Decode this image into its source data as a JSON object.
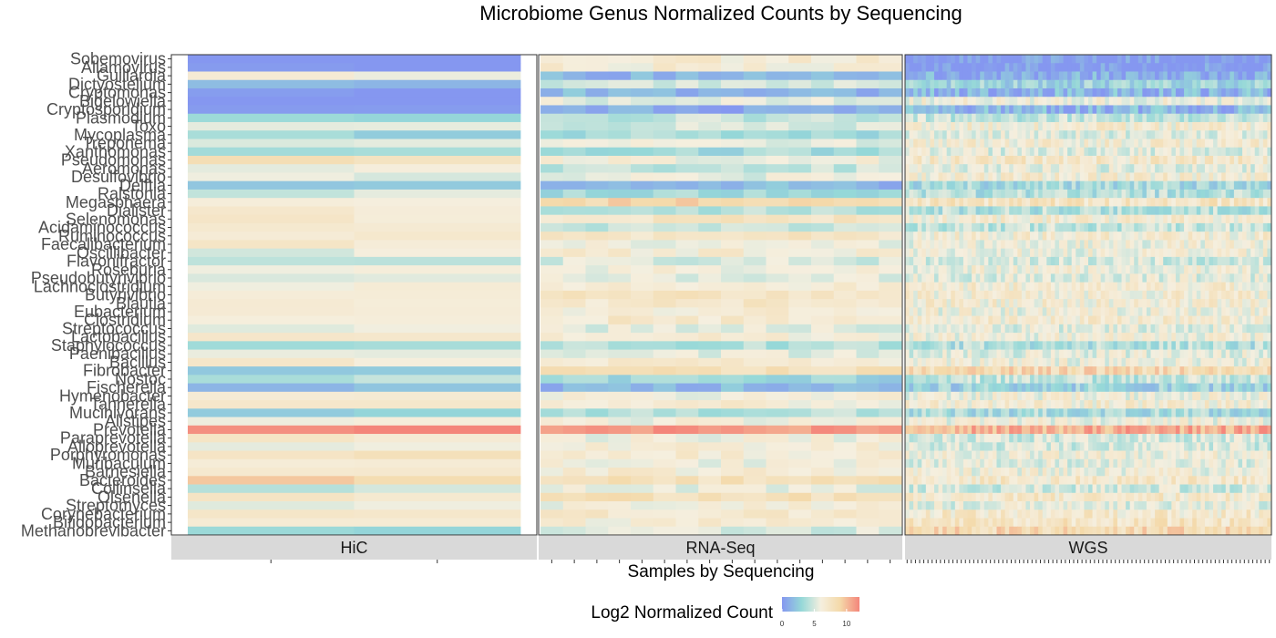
{
  "chart_data": {
    "type": "heatmap",
    "title": "Microbiome Genus Normalized Counts by Sequencing",
    "xlabel": "Samples by Sequencing",
    "legend": {
      "title": "Log2 Normalized Count",
      "ticks": [
        0,
        5,
        10
      ],
      "range": [
        0,
        12
      ],
      "colors": [
        "#8597f0",
        "#95d8d8",
        "#f5efdf",
        "#f4d9a9",
        "#f4857a"
      ],
      "placement": "bottom"
    },
    "panels": [
      "HiC",
      "RNA-Seq",
      "WGS"
    ],
    "panel_sample_counts": [
      2,
      16,
      88
    ],
    "genera": [
      "Sobemovirus",
      "Allamovirus",
      "Guillardia",
      "Dictyostelium",
      "Cryptomonas",
      "Bigelowiella",
      "Cryptosporidium",
      "Plasmodium",
      "Toxo",
      "Mycoplasma",
      "Treponema",
      "Xanthomonas",
      "Pseudomonas",
      "Aeromonas",
      "Desulfovibrio",
      "Delftia",
      "Ralstonia",
      "Megasphaera",
      "Dialister",
      "Selenomonas",
      "Acidaminococcus",
      "Ruminococcus",
      "Faecalibacterium",
      "Oscillibacter",
      "Flavonifractor",
      "Roseburia",
      "Pseudobutyrivibrio",
      "Lachnoclostridium",
      "Butyrivibrio",
      "Blautia",
      "Eubacterium",
      "Clostridium",
      "Streptococcus",
      "Lactobacillus",
      "Staphylococcus",
      "Paenibacillus",
      "Bacillus",
      "Fibrobacter",
      "Nostoc",
      "Fischerella",
      "Hymenobacter",
      "Tannerella",
      "Mucinivorans",
      "Alistipes",
      "Prevotella",
      "Paraprevotella",
      "Alloprevotella",
      "Porphyromonas",
      "Muribaculum",
      "Barnesiella",
      "Bacteroides",
      "Collinsella",
      "Olsenella",
      "Streptomyces",
      "Corynebacterium",
      "Bifidobacterium",
      "Methanobrevibacter"
    ],
    "base_values": {
      "HiC": [
        0,
        0,
        6,
        1.5,
        0,
        0.5,
        0,
        3,
        6,
        3,
        5.5,
        4,
        8,
        6,
        5.5,
        2,
        5,
        6,
        6.5,
        7,
        7,
        6.5,
        7,
        5.5,
        4.5,
        6.5,
        5,
        6.5,
        7,
        7,
        7,
        6.5,
        5.5,
        6.5,
        3,
        5.5,
        6.5,
        2.5,
        4,
        1.5,
        6.5,
        7,
        3,
        6,
        12,
        7,
        6,
        7.5,
        6,
        6.5,
        9,
        4.5,
        7.5,
        5.5,
        7,
        6.5,
        3
      ],
      "RNA-Seq": [
        6.5,
        6.5,
        1.5,
        5,
        1.5,
        5.5,
        1,
        4.5,
        5,
        3.5,
        5.5,
        3.5,
        6,
        4.5,
        5.5,
        1.5,
        3.5,
        9,
        4,
        7.5,
        4.5,
        7.5,
        6,
        6.5,
        5,
        6,
        5.5,
        6.5,
        7.5,
        7,
        6.5,
        7,
        5.5,
        6.5,
        4,
        5.5,
        6.5,
        8,
        3,
        1.5,
        6,
        6.5,
        4,
        6,
        11.5,
        6,
        6.5,
        6.5,
        6,
        6.5,
        8,
        5.5,
        8,
        6,
        7,
        6.5,
        5
      ],
      "WGS": [
        0,
        0,
        1,
        3,
        1.5,
        6,
        1.5,
        4.5,
        6.5,
        5.5,
        6.5,
        5.5,
        7,
        5.5,
        6.5,
        3.5,
        4,
        7.5,
        4,
        6.5,
        4.5,
        6.5,
        6,
        6,
        5,
        6,
        5.5,
        6.5,
        6.5,
        6.5,
        6,
        6.5,
        5.5,
        6,
        4,
        5.5,
        6,
        8.5,
        4.5,
        3,
        6,
        6.5,
        3.5,
        6,
        10.5,
        5,
        5,
        6,
        5.5,
        6,
        7,
        5,
        7,
        5.5,
        7,
        7.5,
        8.5
      ]
    }
  }
}
